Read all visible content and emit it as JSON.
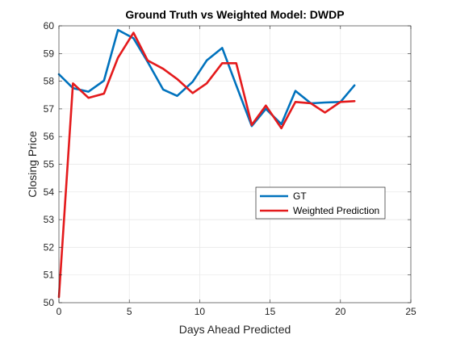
{
  "chart_data": {
    "type": "line",
    "title": "Ground Truth vs Weighted Model: DWDP",
    "xlabel": "Days Ahead Predicted",
    "ylabel": "Closing Price",
    "xlim": [
      0,
      25
    ],
    "ylim": [
      50,
      60
    ],
    "xticks": [
      0,
      5,
      10,
      15,
      20,
      25
    ],
    "yticks": [
      50,
      51,
      52,
      53,
      54,
      55,
      56,
      57,
      58,
      59,
      60
    ],
    "grid": true,
    "legend_position": "center-right",
    "series": [
      {
        "name": "GT",
        "color": "#0072BD",
        "x": [
          0,
          1,
          2.1,
          3.2,
          4.2,
          5.3,
          6.3,
          7.4,
          8.4,
          9.5,
          10.5,
          11.6,
          12.6,
          13.7,
          14.7,
          15.8,
          16.8,
          17.9,
          18.9,
          20,
          21
        ],
        "y": [
          58.25,
          57.75,
          57.62,
          58.02,
          59.85,
          59.55,
          58.7,
          57.7,
          57.47,
          57.98,
          58.75,
          59.2,
          57.85,
          56.38,
          57.0,
          56.45,
          57.65,
          57.2,
          57.23,
          57.25,
          57.85
        ]
      },
      {
        "name": "Weighted Prediction",
        "color": "#E41A1C",
        "x": [
          0,
          1,
          2.1,
          3.2,
          4.2,
          5.3,
          6.3,
          7.4,
          8.4,
          9.5,
          10.5,
          11.6,
          12.6,
          13.7,
          14.7,
          15.8,
          16.8,
          17.9,
          18.9,
          20,
          21
        ],
        "y": [
          50.2,
          57.92,
          57.4,
          57.55,
          58.85,
          59.75,
          58.75,
          58.45,
          58.08,
          57.57,
          57.92,
          58.65,
          58.65,
          56.42,
          57.12,
          56.3,
          57.25,
          57.2,
          56.87,
          57.25,
          57.28
        ]
      }
    ]
  }
}
